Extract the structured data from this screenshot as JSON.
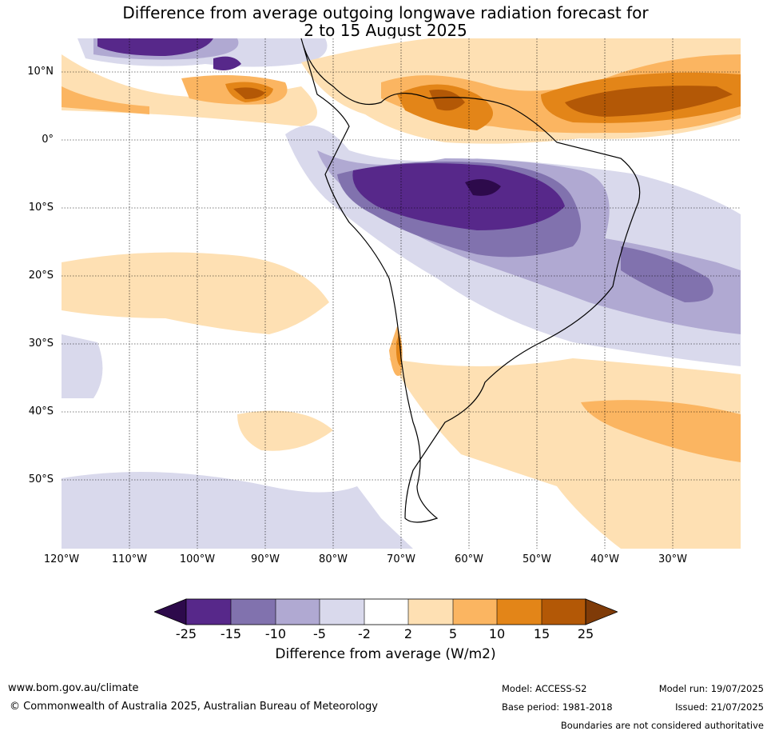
{
  "title_line1": "Difference from average outgoing longwave radiation forecast for",
  "title_line2": "2 to 15 August 2025",
  "lat_labels": [
    "10°N",
    "0°",
    "10°S",
    "20°S",
    "30°S",
    "40°S",
    "50°S"
  ],
  "lon_labels": [
    "120°W",
    "110°W",
    "100°W",
    "90°W",
    "80°W",
    "70°W",
    "60°W",
    "50°W",
    "40°W",
    "30°W"
  ],
  "colorbar": {
    "ticks": [
      "-25",
      "-15",
      "-10",
      "-5",
      "-2",
      "2",
      "5",
      "10",
      "15",
      "25"
    ],
    "colors": [
      "#2d0a4b",
      "#57288a",
      "#8172ae",
      "#b0a9d2",
      "#d9d9ec",
      "#ffffff",
      "#fee0b3",
      "#fbb561",
      "#e38518",
      "#b35806",
      "#7f3b08"
    ],
    "label": "Difference from average (W/m2)"
  },
  "footer": {
    "url": "www.bom.gov.au/climate",
    "copyright": "© Commonwealth of Australia 2025, Australian Bureau of Meteorology",
    "model": "Model: ACCESS-S2",
    "base_period": "Base period: 1981-2018",
    "model_run": "Model run: 19/07/2025",
    "issued": "Issued: 21/07/2025",
    "disclaimer": "Boundaries are not considered authoritative"
  }
}
